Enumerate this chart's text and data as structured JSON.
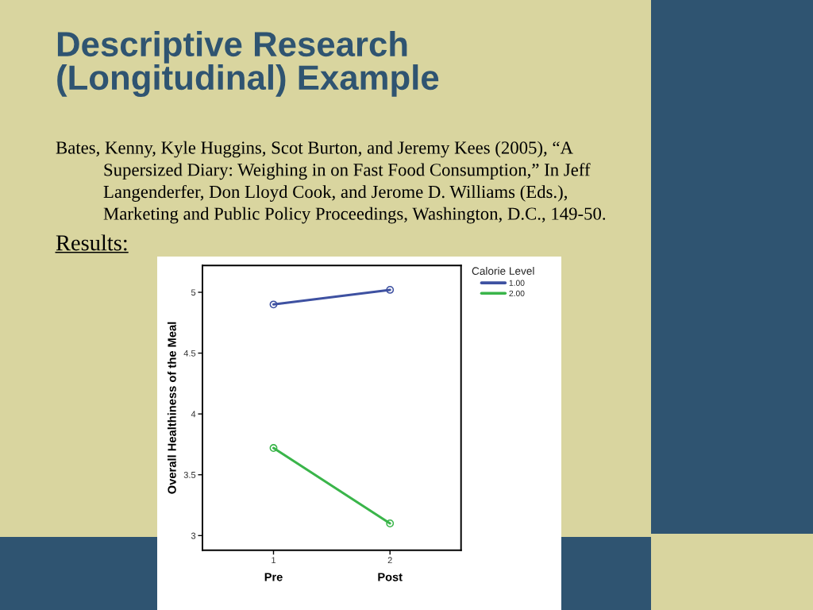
{
  "chart_data": {
    "type": "line",
    "title": "Descriptive Research\n(Longitudinal) Example",
    "annotations": [
      "Bates, Kenny, Kyle Huggins, Scot Burton, and Jeremy Kees (2005), “A\nSupersized Diary: Weighing in on Fast Food Consumption,” In Jeff\nLangenderfer, Don Lloyd Cook, and Jerome D. Williams (Eds.),\nMarketing and Public Policy Proceedings, Washington, D.C., 149-50.",
      "Results:",
      "Pre",
      "Post"
    ],
    "categories": [
      "1",
      "2"
    ],
    "series": [
      {
        "name": "1.00",
        "color": "#3e51a1",
        "values": [
          4.9,
          5.02
        ]
      },
      {
        "name": "2.00",
        "color": "#3ab54a",
        "values": [
          3.72,
          3.1
        ]
      }
    ],
    "ylabel": "Overall Healthiness of the Meal",
    "ylim": [
      2.88,
      5.22
    ],
    "yticks": [
      3,
      3.5,
      4,
      4.5,
      5
    ],
    "legend_title": "Calorie Level",
    "legend": "top right",
    "marker": "circle",
    "line_style": "solid",
    "grid": false
  }
}
